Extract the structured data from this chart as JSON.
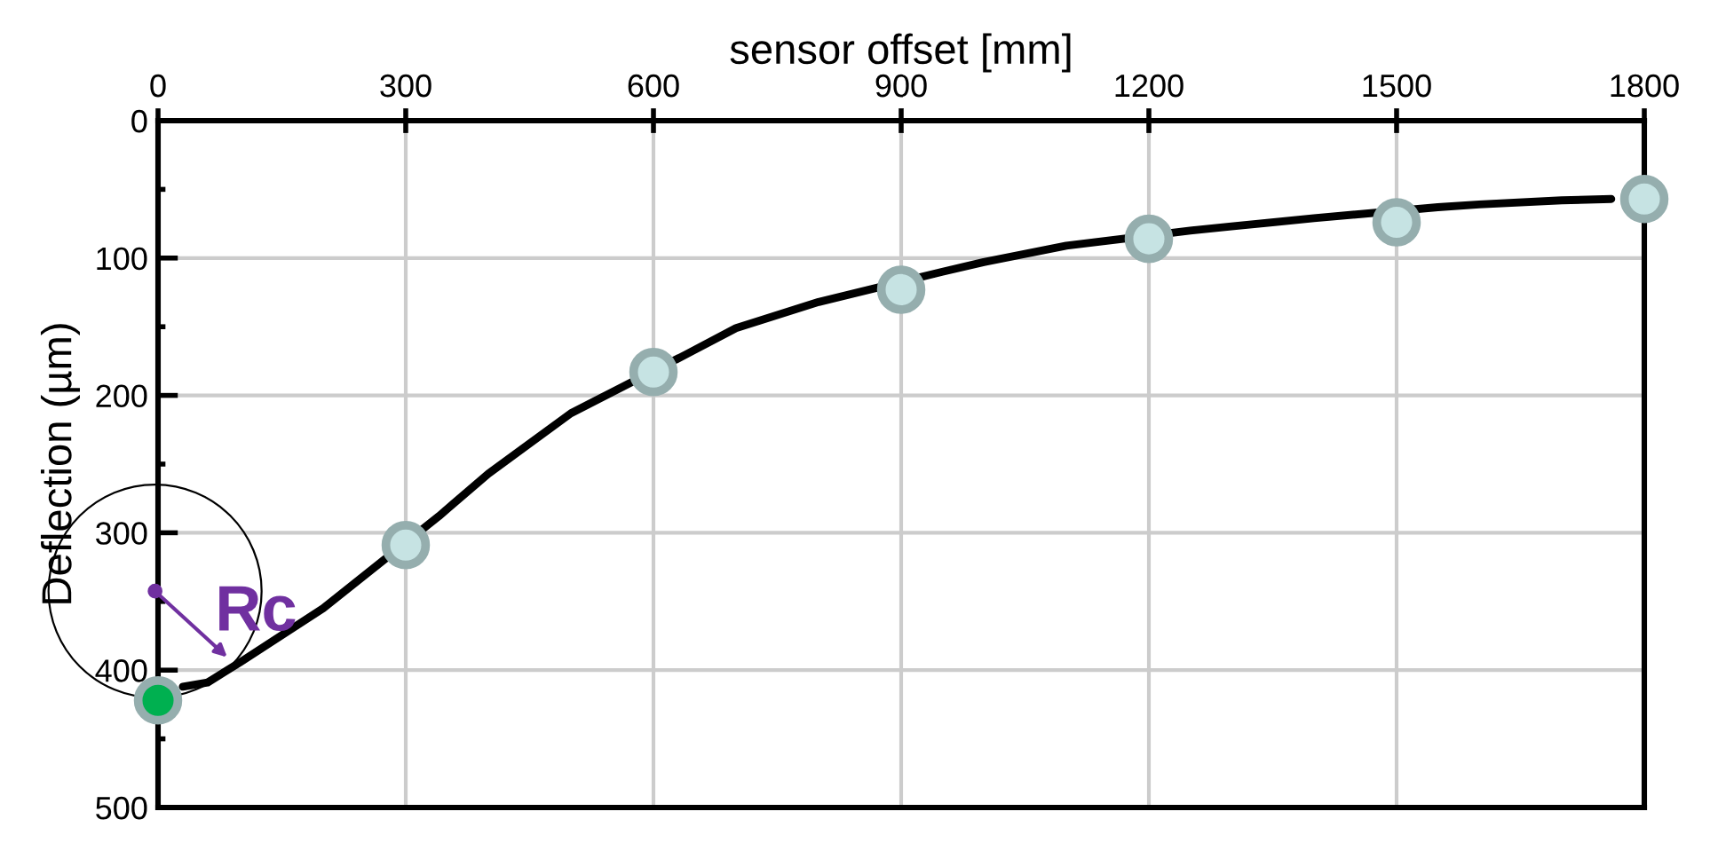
{
  "chart_data": {
    "type": "line",
    "xlabel": "sensor offset [mm]",
    "ylabel": "Deflection (µm)",
    "xlim": [
      0,
      1800
    ],
    "xticks": [
      0,
      300,
      600,
      900,
      1200,
      1500,
      1800
    ],
    "ylim": [
      500,
      0
    ],
    "yticks": [
      0,
      100,
      200,
      300,
      400,
      500
    ],
    "grid": true,
    "annotations": [
      "Rc"
    ],
    "series": [
      {
        "color": "#000000",
        "line_style": "solid",
        "marker": "none",
        "x": [
          30,
          60,
          100,
          200,
          340,
          400,
          500,
          640,
          700,
          800,
          950,
          1000,
          1100,
          1250,
          1300,
          1400,
          1550,
          1600,
          1700,
          1760
        ],
        "values": [
          412,
          409,
          394,
          355,
          288,
          257,
          213,
          170,
          151,
          132,
          110,
          103,
          91,
          80,
          77,
          71,
          63,
          61,
          58,
          57
        ]
      },
      {
        "type": "scatter",
        "marker": "circle",
        "colors": [
          "#00b050",
          "#c6e3e3",
          "#c6e3e3",
          "#c6e3e3",
          "#c6e3e3",
          "#c6e3e3",
          "#c6e3e3"
        ],
        "x": [
          0,
          300,
          600,
          900,
          1200,
          1500,
          1800
        ],
        "values": [
          422,
          309,
          183,
          123,
          86,
          74,
          57
        ]
      }
    ]
  }
}
